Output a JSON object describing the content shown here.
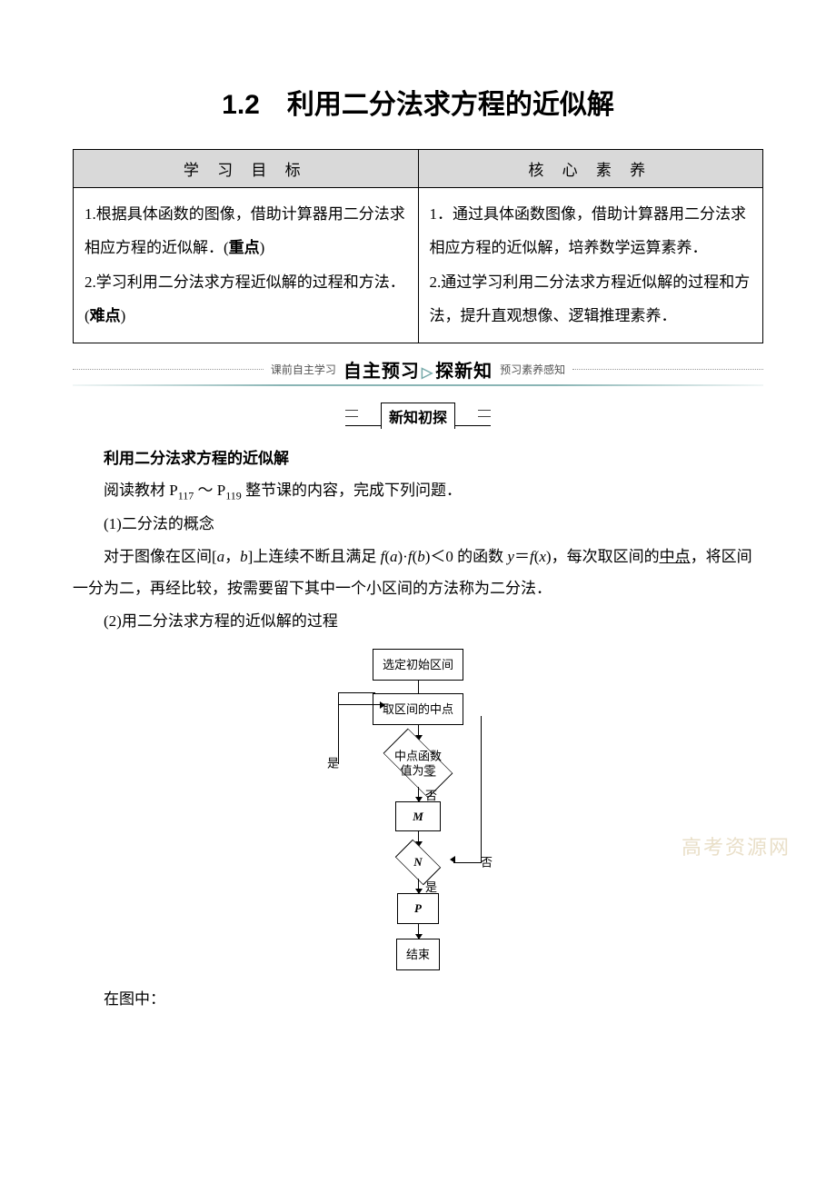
{
  "title": "1.2　利用二分法求方程的近似解",
  "table": {
    "headers": [
      "学 习 目 标",
      "核 心 素 养"
    ],
    "left_html": "1.根据具体函数的图像，借助计算器用二分法求相应方程的近似解．(<span class=\"bold\">重点</span>)<br>2.学习利用二分法求方程近似解的过程和方法．(<span class=\"bold\">难点</span>)",
    "right_html": "1．通过具体函数图像，借助计算器用二分法求相应方程的近似解，培养数学运算素养．<br>2.通过学习利用二分法求方程近似解的过程和方法，提升直观想像、逻辑推理素养．"
  },
  "banner": {
    "pre": "课前自主学习",
    "main_a": "自主预习",
    "main_b": "探新知",
    "post": "预习素养感知"
  },
  "subsection": "新知初探",
  "heading1": "利用二分法求方程的近似解",
  "p_read_a": "阅读教材 P",
  "p_read_s1": "117",
  "p_read_b": " ～ P",
  "p_read_s2": "119",
  "p_read_c": " 整节课的内容，完成下列问题．",
  "p_1": "(1)二分法的概念",
  "p_concept_a": "对于图像在区间[",
  "v_a": "a",
  "p_concept_b": "，",
  "v_b": "b",
  "p_concept_c": "]上连续不断且满足 ",
  "v_fa": "f",
  "p_concept_d": "(",
  "p_concept_dot": ")·",
  "p_concept_e": "＜0 的函数 ",
  "v_y": "y",
  "p_concept_f": "＝",
  "v_fx": "f",
  "p_concept_g": "(",
  "v_x": "x",
  "p_concept_h": ")，每次取区间的",
  "u_mid": "中点",
  "p_concept_i": "，将区间一分为二，再经比较，按需要留下其中一个小区间的方法称为二分法．",
  "p_2": "(2)用二分法求方程的近似解的过程",
  "p_img_after": "在图中：",
  "flow": {
    "n1": "选定初始区间",
    "n2": "取区间的中点",
    "n3a": "中点函数",
    "n3b": "值为",
    "n3u": "零",
    "yes": "是",
    "no": "否",
    "M": "M",
    "N": "N",
    "P": "P",
    "end": "结束"
  },
  "watermark": "高考资源网",
  "colors": {
    "page_bg": "#ffffff",
    "text": "#000000",
    "table_header_bg": "#d9d9d9",
    "accent": "#8ab5b5",
    "watermark": "#e9dfc8"
  }
}
